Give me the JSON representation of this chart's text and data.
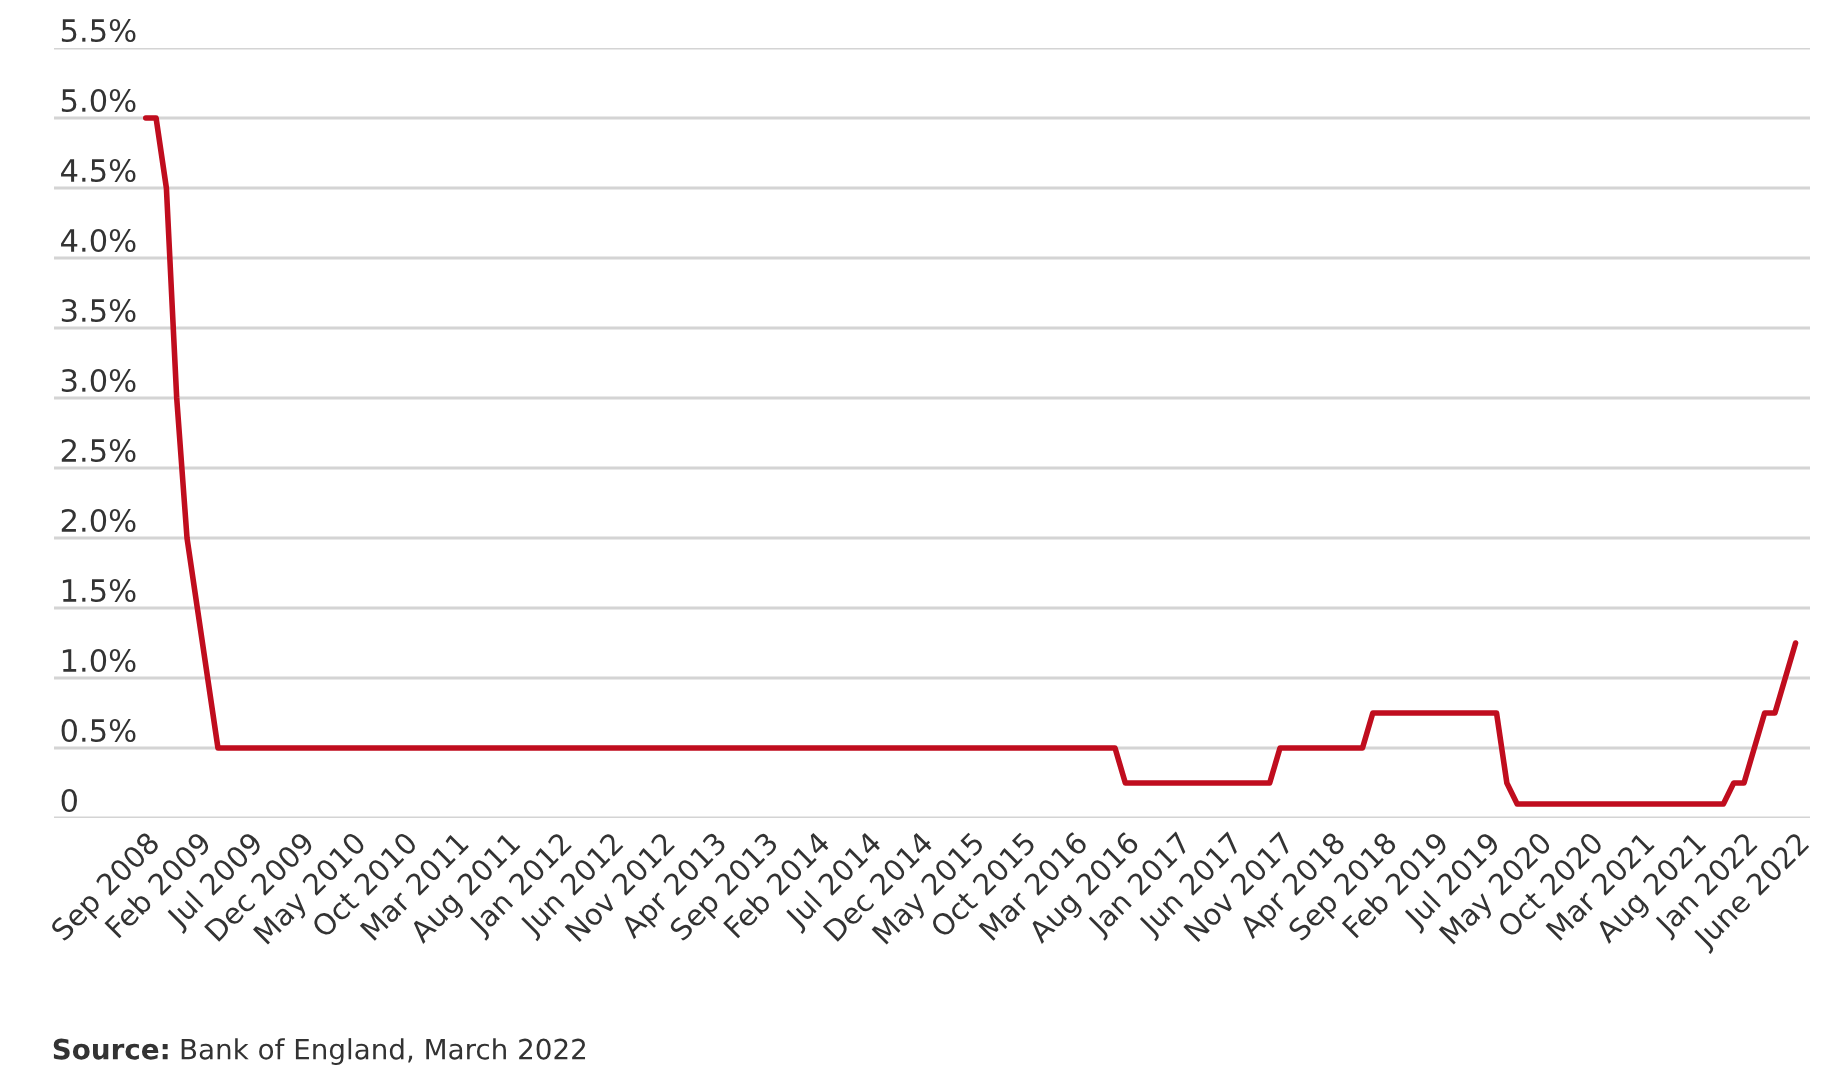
{
  "chart_data": {
    "type": "line",
    "categories": [
      "Sep 2008",
      null,
      null,
      null,
      null,
      "Feb 2009",
      null,
      null,
      null,
      null,
      "Jul 2009",
      null,
      null,
      null,
      null,
      "Dec 2009",
      null,
      null,
      null,
      null,
      "May 2010",
      null,
      null,
      null,
      null,
      "Oct 2010",
      null,
      null,
      null,
      null,
      "Mar 2011",
      null,
      null,
      null,
      null,
      "Aug 2011",
      null,
      null,
      null,
      null,
      "Jan 2012",
      null,
      null,
      null,
      null,
      "Jun 2012",
      null,
      null,
      null,
      null,
      "Nov 2012",
      null,
      null,
      null,
      null,
      "Apr 2013",
      null,
      null,
      null,
      null,
      "Sep 2013",
      null,
      null,
      null,
      null,
      "Feb 2014",
      null,
      null,
      null,
      null,
      "Jul 2014",
      null,
      null,
      null,
      null,
      "Dec 2014",
      null,
      null,
      null,
      null,
      "May 2015",
      null,
      null,
      null,
      null,
      "Oct 2015",
      null,
      null,
      null,
      null,
      "Mar 2016",
      null,
      null,
      null,
      null,
      "Aug 2016",
      null,
      null,
      null,
      null,
      "Jan 2017",
      null,
      null,
      null,
      null,
      "Jun 2017",
      null,
      null,
      null,
      null,
      "Nov 2017",
      null,
      null,
      null,
      null,
      "Apr 2018",
      null,
      null,
      null,
      null,
      "Sep 2018",
      null,
      null,
      null,
      null,
      "Feb 2019",
      null,
      null,
      null,
      null,
      "Jul 2019",
      null,
      null,
      null,
      null,
      "May 2020",
      null,
      null,
      null,
      null,
      "Oct 2020",
      null,
      null,
      null,
      null,
      "Mar 2021",
      null,
      null,
      null,
      null,
      "Aug 2021",
      null,
      null,
      null,
      null,
      "Jan 2022",
      null,
      null,
      null,
      null,
      "June 2022"
    ],
    "series": [
      {
        "color": "#c00d1e",
        "values": [
          5.0,
          5.0,
          4.5,
          3.0,
          2.0,
          1.5,
          1.0,
          0.5,
          0.5,
          0.5,
          0.5,
          0.5,
          0.5,
          0.5,
          0.5,
          0.5,
          0.5,
          0.5,
          0.5,
          0.5,
          0.5,
          0.5,
          0.5,
          0.5,
          0.5,
          0.5,
          0.5,
          0.5,
          0.5,
          0.5,
          0.5,
          0.5,
          0.5,
          0.5,
          0.5,
          0.5,
          0.5,
          0.5,
          0.5,
          0.5,
          0.5,
          0.5,
          0.5,
          0.5,
          0.5,
          0.5,
          0.5,
          0.5,
          0.5,
          0.5,
          0.5,
          0.5,
          0.5,
          0.5,
          0.5,
          0.5,
          0.5,
          0.5,
          0.5,
          0.5,
          0.5,
          0.5,
          0.5,
          0.5,
          0.5,
          0.5,
          0.5,
          0.5,
          0.5,
          0.5,
          0.5,
          0.5,
          0.5,
          0.5,
          0.5,
          0.5,
          0.5,
          0.5,
          0.5,
          0.5,
          0.5,
          0.5,
          0.5,
          0.5,
          0.5,
          0.5,
          0.5,
          0.5,
          0.5,
          0.5,
          0.5,
          0.5,
          0.5,
          0.5,
          0.5,
          0.25,
          0.25,
          0.25,
          0.25,
          0.25,
          0.25,
          0.25,
          0.25,
          0.25,
          0.25,
          0.25,
          0.25,
          0.25,
          0.25,
          0.25,
          0.5,
          0.5,
          0.5,
          0.5,
          0.5,
          0.5,
          0.5,
          0.5,
          0.5,
          0.75,
          0.75,
          0.75,
          0.75,
          0.75,
          0.75,
          0.75,
          0.75,
          0.75,
          0.75,
          0.75,
          0.75,
          0.75,
          0.25,
          0.1,
          0.1,
          0.1,
          0.1,
          0.1,
          0.1,
          0.1,
          0.1,
          0.1,
          0.1,
          0.1,
          0.1,
          0.1,
          0.1,
          0.1,
          0.1,
          0.1,
          0.1,
          0.1,
          0.1,
          0.1,
          0.25,
          0.25,
          0.5,
          0.75,
          0.75,
          1.0,
          1.25
        ]
      }
    ],
    "ylim": [
      0,
      5.5
    ],
    "yticks": [
      {
        "value": 0,
        "label": "0"
      },
      {
        "value": 0.5,
        "label": "0.5%"
      },
      {
        "value": 1.0,
        "label": "1.0%"
      },
      {
        "value": 1.5,
        "label": "1.5%"
      },
      {
        "value": 2.0,
        "label": "2.0%"
      },
      {
        "value": 2.5,
        "label": "2.5%"
      },
      {
        "value": 3.0,
        "label": "3.0%"
      },
      {
        "value": 3.5,
        "label": "3.5%"
      },
      {
        "value": 4.0,
        "label": "4.0%"
      },
      {
        "value": 4.5,
        "label": "4.5%"
      },
      {
        "value": 5.0,
        "label": "5.0%"
      },
      {
        "value": 5.5,
        "label": "5.5%"
      }
    ],
    "grid": "y",
    "annotations": [
      "Source: Bank of England, March 2022"
    ]
  }
}
